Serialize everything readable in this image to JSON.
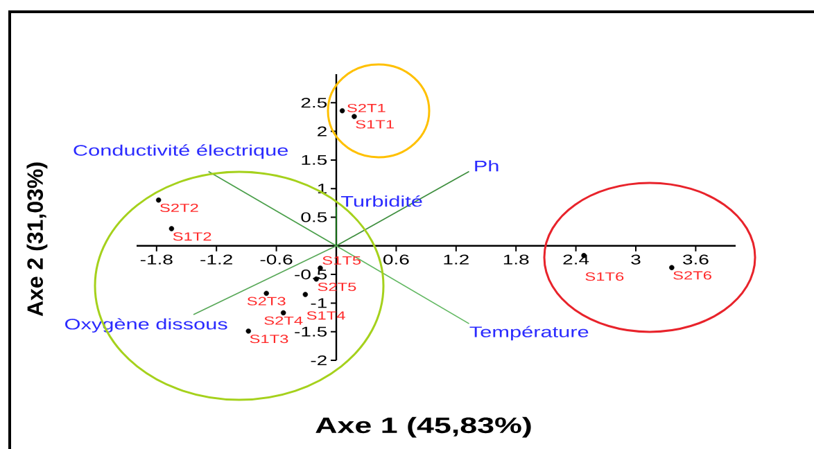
{
  "chart_data": {
    "type": "scatter",
    "xlabel": "Axe 1 (45,83%)",
    "ylabel": "Axe 2 (31,03%)",
    "xlim": [
      -2,
      4
    ],
    "ylim": [
      -2,
      3
    ],
    "xticks": [
      -1.8,
      -1.2,
      -0.6,
      0.6,
      1.2,
      1.8,
      2.4,
      3,
      3.6
    ],
    "yticks": [
      -2,
      -1.5,
      -1,
      -0.5,
      0.5,
      1,
      1.5,
      2,
      2.5
    ],
    "marker": "circle",
    "series": [
      {
        "color": "#000000",
        "x": [
          0.06,
          0.18,
          -1.78,
          -1.65,
          -0.16,
          -0.2,
          -0.7,
          -0.31,
          -0.53,
          -0.88,
          2.48,
          3.36
        ],
        "values": [
          2.36,
          2.26,
          0.8,
          0.3,
          -0.39,
          -0.58,
          -0.83,
          -0.85,
          -1.17,
          -1.49,
          -0.17,
          -0.38
        ]
      },
      {
        "type": "line",
        "name": "Conductivité électrique",
        "color": "#4a9f4a",
        "marker": "none",
        "x": [
          0,
          -1.28
        ],
        "values": [
          0,
          1.3
        ]
      },
      {
        "type": "line",
        "name": "Ph",
        "color": "#3f8f3f",
        "marker": "none",
        "x": [
          0,
          1.33
        ],
        "values": [
          0,
          1.3
        ]
      },
      {
        "type": "line",
        "name": "Turbidité",
        "color": "#157a15",
        "marker": "none",
        "x": [
          0,
          0
        ],
        "values": [
          0,
          0.68
        ]
      },
      {
        "type": "line",
        "name": "Température",
        "color": "#62b862",
        "marker": "none",
        "x": [
          0,
          1.33
        ],
        "values": [
          0,
          -1.36
        ]
      },
      {
        "type": "line",
        "name": "Oxygène dissous",
        "color": "#58a858",
        "marker": "none",
        "x": [
          0,
          -1.43
        ],
        "values": [
          0,
          -1.2
        ]
      }
    ],
    "annotations": [
      {
        "text": "S2T1",
        "x": 0.06,
        "y": 2.36
      },
      {
        "text": "S1T1",
        "x": 0.18,
        "y": 2.26
      },
      {
        "text": "S2T2",
        "x": -1.78,
        "y": 0.8
      },
      {
        "text": "S1T2",
        "x": -1.65,
        "y": 0.3
      },
      {
        "text": "S1T5",
        "x": -0.16,
        "y": -0.39
      },
      {
        "text": "S2T5",
        "x": -0.2,
        "y": -0.58
      },
      {
        "text": "S2T3",
        "x": -0.7,
        "y": -0.83
      },
      {
        "text": "S1T4",
        "x": -0.31,
        "y": -0.85
      },
      {
        "text": "S2T4",
        "x": -0.53,
        "y": -1.17
      },
      {
        "text": "S1T3",
        "x": -0.88,
        "y": -1.49
      },
      {
        "text": "S1T6",
        "x": 2.48,
        "y": -0.17
      },
      {
        "text": "S2T6",
        "x": 3.36,
        "y": -0.38
      }
    ]
  }
}
